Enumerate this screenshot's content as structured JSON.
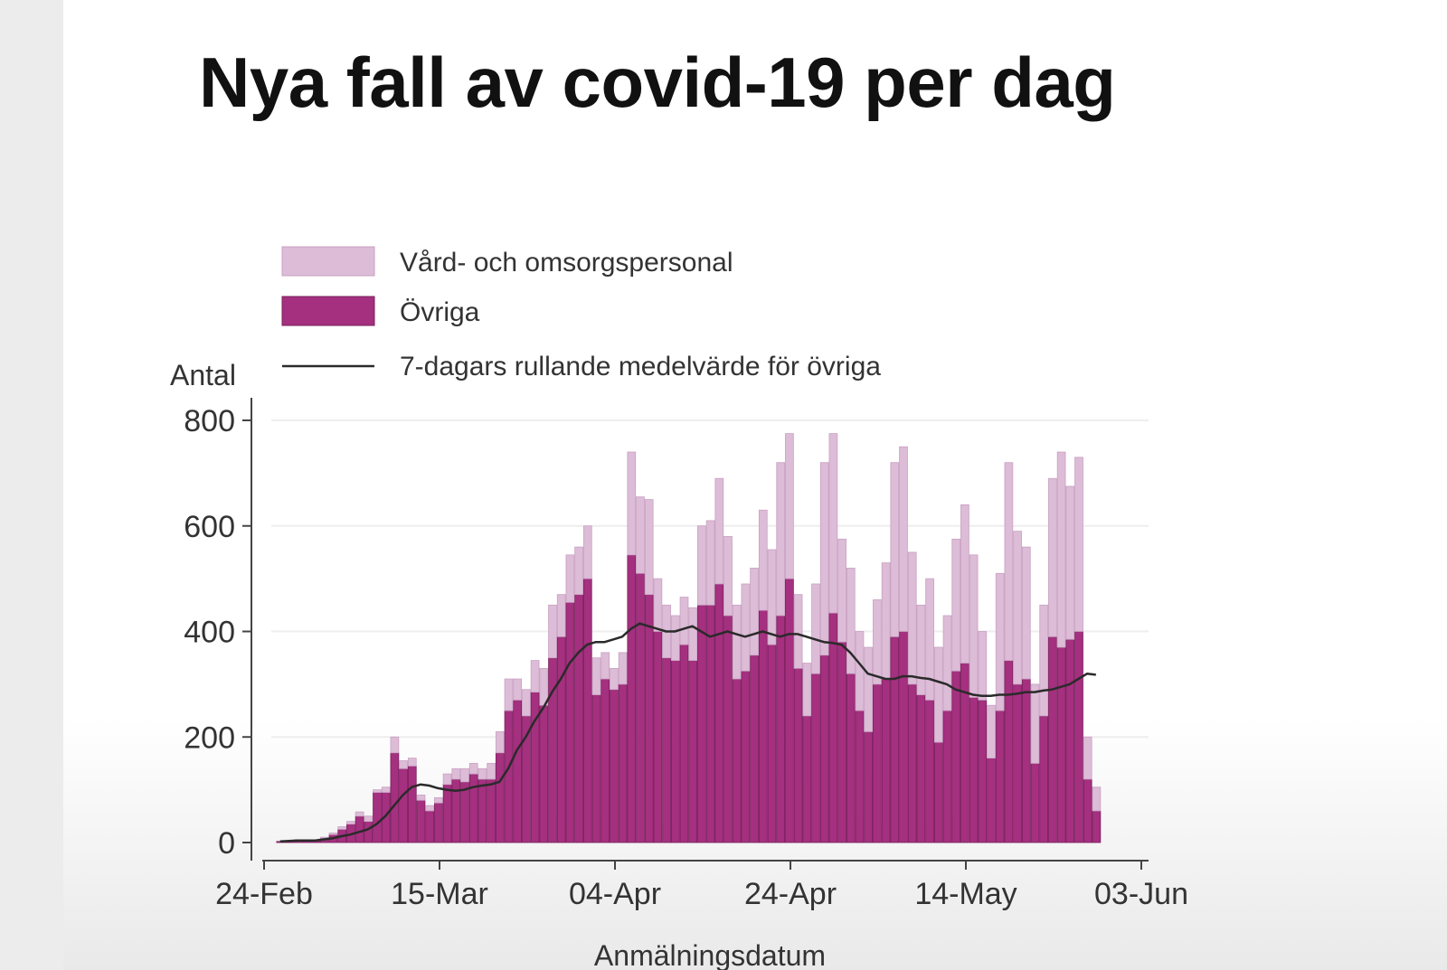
{
  "title": "Nya fall av covid-19 per dag",
  "chart_data": {
    "type": "bar",
    "stacked": true,
    "xlabel": "Anmälningsdatum",
    "ylabel": "Antal",
    "ylim": [
      0,
      800
    ],
    "yticks": [
      0,
      200,
      400,
      600,
      800
    ],
    "date_start": "2020-02-24",
    "x_range_days": [
      0,
      100
    ],
    "xticks": [
      {
        "day": 0,
        "label": "24-Feb"
      },
      {
        "day": 20,
        "label": "15-Mar"
      },
      {
        "day": 40,
        "label": "04-Apr"
      },
      {
        "day": 60,
        "label": "24-Apr"
      },
      {
        "day": 80,
        "label": "14-May"
      },
      {
        "day": 100,
        "label": "03-Jun"
      }
    ],
    "legend": {
      "position": "top-left",
      "entries": [
        {
          "label": "Vård- och omsorgspersonal",
          "kind": "bar",
          "color": "#dcbcd6"
        },
        {
          "label": "Övriga",
          "kind": "bar",
          "color": "#a4307f"
        },
        {
          "label": "7-dagars rullande medelvärde för övriga",
          "kind": "line",
          "color": "#2a2a2a"
        }
      ]
    },
    "series": [
      {
        "name": "Övriga",
        "color": "#a4307f",
        "values": [
          2,
          3,
          5,
          3,
          4,
          8,
          15,
          25,
          35,
          50,
          40,
          95,
          95,
          170,
          140,
          145,
          80,
          60,
          75,
          110,
          120,
          115,
          130,
          120,
          120,
          170,
          250,
          270,
          240,
          285,
          260,
          350,
          390,
          455,
          470,
          500,
          280,
          310,
          290,
          300,
          545,
          510,
          470,
          400,
          350,
          345,
          375,
          345,
          450,
          450,
          490,
          430,
          310,
          325,
          355,
          440,
          375,
          430,
          500,
          330,
          240,
          320,
          355,
          435,
          380,
          320,
          250,
          210,
          300,
          310,
          390,
          400,
          300,
          280,
          270,
          190,
          250,
          325,
          340,
          275,
          270,
          160,
          250,
          345,
          300,
          310,
          150,
          240,
          390,
          370,
          385,
          400,
          120,
          60
        ]
      },
      {
        "name": "Vård- och omsorgspersonal",
        "color": "#dcbcd6",
        "values": [
          0,
          0,
          0,
          0,
          0,
          2,
          3,
          5,
          5,
          8,
          10,
          5,
          10,
          30,
          15,
          15,
          10,
          10,
          10,
          20,
          20,
          25,
          20,
          20,
          30,
          40,
          60,
          40,
          50,
          60,
          70,
          100,
          80,
          90,
          90,
          100,
          70,
          50,
          40,
          60,
          195,
          145,
          180,
          100,
          100,
          85,
          90,
          100,
          150,
          160,
          200,
          150,
          140,
          165,
          165,
          190,
          180,
          290,
          275,
          140,
          100,
          170,
          365,
          340,
          195,
          200,
          150,
          160,
          160,
          220,
          330,
          350,
          250,
          170,
          230,
          180,
          180,
          250,
          300,
          270,
          130,
          100,
          260,
          375,
          290,
          250,
          150,
          210,
          300,
          370,
          290,
          330,
          80,
          45
        ]
      },
      {
        "name": "7-dagars rullande medelvärde för övriga",
        "kind": "line",
        "color": "#2a2a2a",
        "values": [
          2,
          3,
          4,
          4,
          4,
          6,
          8,
          12,
          15,
          20,
          25,
          35,
          50,
          70,
          90,
          105,
          110,
          108,
          103,
          100,
          98,
          100,
          105,
          108,
          110,
          115,
          140,
          175,
          200,
          230,
          255,
          285,
          310,
          340,
          360,
          375,
          380,
          380,
          385,
          390,
          405,
          415,
          410,
          405,
          400,
          400,
          405,
          410,
          400,
          390,
          395,
          400,
          395,
          390,
          395,
          400,
          395,
          390,
          395,
          395,
          390,
          385,
          380,
          378,
          375,
          360,
          340,
          320,
          315,
          310,
          310,
          315,
          315,
          312,
          310,
          305,
          300,
          290,
          285,
          280,
          278,
          278,
          280,
          280,
          282,
          285,
          285,
          288,
          290,
          295,
          300,
          310,
          320,
          318
        ]
      }
    ]
  }
}
